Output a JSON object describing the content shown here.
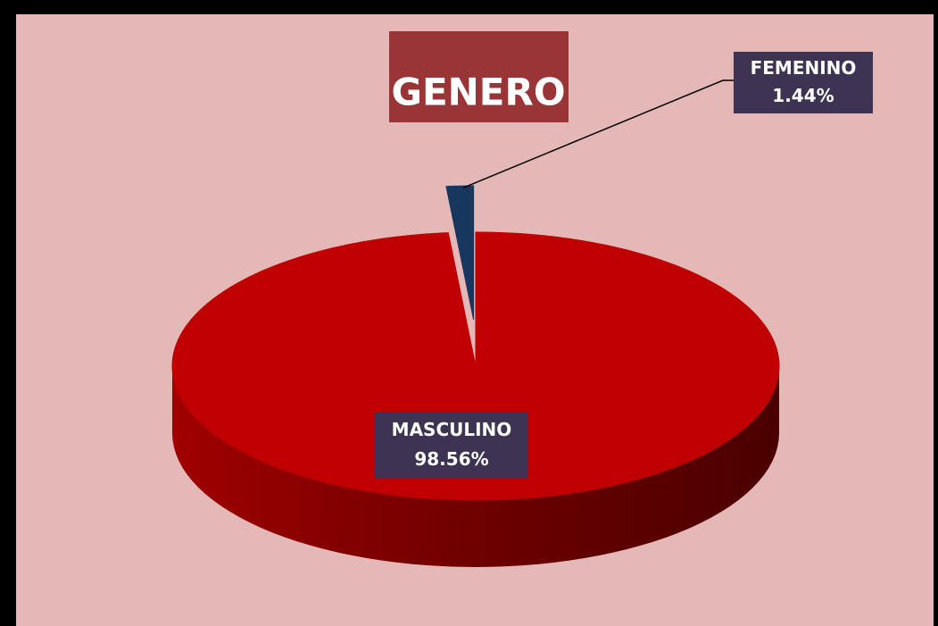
{
  "chart_data": {
    "type": "pie",
    "title": "GENERO",
    "categories": [
      "MASCULINO",
      "FEMENINO"
    ],
    "values": [
      98.56,
      1.44
    ],
    "value_labels": [
      "98.56%",
      "1.44%"
    ],
    "colors": [
      "#c00000",
      "#17375e"
    ]
  }
}
